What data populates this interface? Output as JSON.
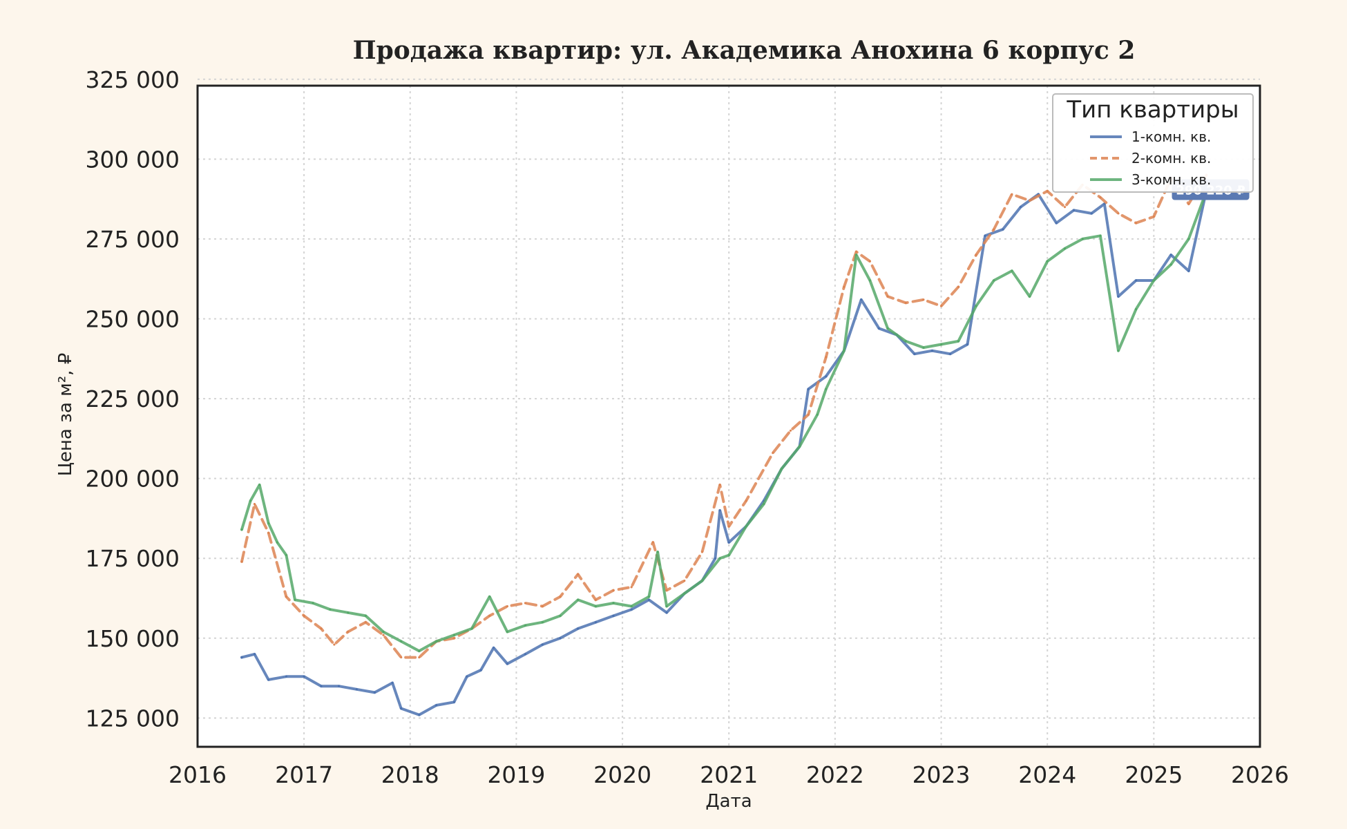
{
  "chart_data": {
    "type": "line",
    "title": "Продажа квартир: ул. Академика Анохина 6 корпус 2",
    "xlabel": "Дата",
    "ylabel": "Цена за м², ₽",
    "xlim": [
      "2016-01-01",
      "2026-01-01"
    ],
    "ylim": [
      116000,
      323000
    ],
    "x_ticks": [
      "2016",
      "2017",
      "2018",
      "2019",
      "2020",
      "2021",
      "2022",
      "2023",
      "2024",
      "2025",
      "2026"
    ],
    "y_ticks": [
      125000,
      150000,
      175000,
      200000,
      225000,
      250000,
      275000,
      300000,
      325000
    ],
    "y_tick_labels": [
      "125 000",
      "150 000",
      "175 000",
      "200 000",
      "225 000",
      "250 000",
      "275 000",
      "300 000",
      "325 000"
    ],
    "grid": true,
    "legend": {
      "title": "Тип квартиры",
      "placement": "top-right"
    },
    "annotation": {
      "text": "290 220 ₽",
      "series": "1-комн. кв.",
      "color": "#5a79b2"
    },
    "series": [
      {
        "name": "1-комн. кв.",
        "color": "#4c72b0",
        "style": "solid",
        "points": [
          [
            "2016-06-01",
            144000
          ],
          [
            "2016-07-15",
            145000
          ],
          [
            "2016-09-01",
            137000
          ],
          [
            "2016-11-01",
            138000
          ],
          [
            "2017-01-01",
            138000
          ],
          [
            "2017-03-01",
            135000
          ],
          [
            "2017-05-01",
            135000
          ],
          [
            "2017-07-01",
            134000
          ],
          [
            "2017-09-01",
            133000
          ],
          [
            "2017-11-01",
            136000
          ],
          [
            "2017-12-01",
            128000
          ],
          [
            "2018-02-01",
            126000
          ],
          [
            "2018-04-01",
            129000
          ],
          [
            "2018-06-01",
            130000
          ],
          [
            "2018-07-15",
            138000
          ],
          [
            "2018-09-01",
            140000
          ],
          [
            "2018-10-15",
            147000
          ],
          [
            "2018-12-01",
            142000
          ],
          [
            "2019-02-01",
            145000
          ],
          [
            "2019-04-01",
            148000
          ],
          [
            "2019-06-01",
            150000
          ],
          [
            "2019-08-01",
            153000
          ],
          [
            "2019-10-01",
            155000
          ],
          [
            "2019-12-01",
            157000
          ],
          [
            "2020-02-01",
            159000
          ],
          [
            "2020-04-01",
            162000
          ],
          [
            "2020-06-01",
            158000
          ],
          [
            "2020-08-01",
            164000
          ],
          [
            "2020-10-01",
            168000
          ],
          [
            "2020-11-15",
            175000
          ],
          [
            "2020-12-01",
            190000
          ],
          [
            "2021-01-01",
            180000
          ],
          [
            "2021-03-01",
            185000
          ],
          [
            "2021-05-01",
            193000
          ],
          [
            "2021-07-01",
            203000
          ],
          [
            "2021-09-01",
            210000
          ],
          [
            "2021-10-01",
            228000
          ],
          [
            "2021-12-01",
            232000
          ],
          [
            "2022-02-01",
            240000
          ],
          [
            "2022-04-01",
            256000
          ],
          [
            "2022-06-01",
            247000
          ],
          [
            "2022-08-01",
            245000
          ],
          [
            "2022-10-01",
            239000
          ],
          [
            "2022-12-01",
            240000
          ],
          [
            "2023-02-01",
            239000
          ],
          [
            "2023-04-01",
            242000
          ],
          [
            "2023-06-01",
            276000
          ],
          [
            "2023-08-01",
            278000
          ],
          [
            "2023-10-01",
            285000
          ],
          [
            "2023-12-01",
            289000
          ],
          [
            "2024-02-01",
            280000
          ],
          [
            "2024-04-01",
            284000
          ],
          [
            "2024-06-01",
            283000
          ],
          [
            "2024-07-15",
            286000
          ],
          [
            "2024-09-01",
            257000
          ],
          [
            "2024-11-01",
            262000
          ],
          [
            "2025-01-01",
            262000
          ],
          [
            "2025-03-01",
            270000
          ],
          [
            "2025-05-01",
            265000
          ],
          [
            "2025-07-01",
            290220
          ]
        ]
      },
      {
        "name": "2-комн. кв.",
        "color": "#dd8452",
        "style": "dashed",
        "points": [
          [
            "2016-06-01",
            174000
          ],
          [
            "2016-07-15",
            192000
          ],
          [
            "2016-09-01",
            183000
          ],
          [
            "2016-11-01",
            163000
          ],
          [
            "2017-01-01",
            157000
          ],
          [
            "2017-03-01",
            153000
          ],
          [
            "2017-04-15",
            148000
          ],
          [
            "2017-06-01",
            152000
          ],
          [
            "2017-08-01",
            155000
          ],
          [
            "2017-10-01",
            151000
          ],
          [
            "2017-12-01",
            144000
          ],
          [
            "2018-02-01",
            144000
          ],
          [
            "2018-04-01",
            149000
          ],
          [
            "2018-06-01",
            150000
          ],
          [
            "2018-08-01",
            153000
          ],
          [
            "2018-10-01",
            157000
          ],
          [
            "2018-12-01",
            160000
          ],
          [
            "2019-02-01",
            161000
          ],
          [
            "2019-04-01",
            160000
          ],
          [
            "2019-06-01",
            163000
          ],
          [
            "2019-08-01",
            170000
          ],
          [
            "2019-10-01",
            162000
          ],
          [
            "2019-12-01",
            165000
          ],
          [
            "2020-02-01",
            166000
          ],
          [
            "2020-04-15",
            180000
          ],
          [
            "2020-06-01",
            165000
          ],
          [
            "2020-08-01",
            168000
          ],
          [
            "2020-10-01",
            177000
          ],
          [
            "2020-12-01",
            198000
          ],
          [
            "2021-01-01",
            185000
          ],
          [
            "2021-03-01",
            193000
          ],
          [
            "2021-06-01",
            208000
          ],
          [
            "2021-08-01",
            215000
          ],
          [
            "2021-10-01",
            220000
          ],
          [
            "2021-12-01",
            238000
          ],
          [
            "2022-02-01",
            260000
          ],
          [
            "2022-03-15",
            271000
          ],
          [
            "2022-05-01",
            268000
          ],
          [
            "2022-07-01",
            257000
          ],
          [
            "2022-09-01",
            255000
          ],
          [
            "2022-11-01",
            256000
          ],
          [
            "2023-01-01",
            254000
          ],
          [
            "2023-03-01",
            260000
          ],
          [
            "2023-05-01",
            270000
          ],
          [
            "2023-07-01",
            278000
          ],
          [
            "2023-09-01",
            289000
          ],
          [
            "2023-11-01",
            287000
          ],
          [
            "2024-01-01",
            290000
          ],
          [
            "2024-03-01",
            285000
          ],
          [
            "2024-05-01",
            292000
          ],
          [
            "2024-07-01",
            288000
          ],
          [
            "2024-09-01",
            283000
          ],
          [
            "2024-11-01",
            280000
          ],
          [
            "2025-01-01",
            282000
          ],
          [
            "2025-03-01",
            294000
          ],
          [
            "2025-05-01",
            286000
          ],
          [
            "2025-07-01",
            295000
          ]
        ]
      },
      {
        "name": "3-комн. кв.",
        "color": "#55a868",
        "style": "solid",
        "points": [
          [
            "2016-06-01",
            184000
          ],
          [
            "2016-07-01",
            193000
          ],
          [
            "2016-08-01",
            198000
          ],
          [
            "2016-09-01",
            186000
          ],
          [
            "2016-10-01",
            180000
          ],
          [
            "2016-11-01",
            176000
          ],
          [
            "2016-12-01",
            162000
          ],
          [
            "2017-02-01",
            161000
          ],
          [
            "2017-04-01",
            159000
          ],
          [
            "2017-06-01",
            158000
          ],
          [
            "2017-08-01",
            157000
          ],
          [
            "2017-10-01",
            152000
          ],
          [
            "2017-12-01",
            149000
          ],
          [
            "2018-02-01",
            146000
          ],
          [
            "2018-04-01",
            149000
          ],
          [
            "2018-06-01",
            151000
          ],
          [
            "2018-08-01",
            153000
          ],
          [
            "2018-10-01",
            163000
          ],
          [
            "2018-12-01",
            152000
          ],
          [
            "2019-02-01",
            154000
          ],
          [
            "2019-04-01",
            155000
          ],
          [
            "2019-06-01",
            157000
          ],
          [
            "2019-08-01",
            162000
          ],
          [
            "2019-10-01",
            160000
          ],
          [
            "2019-12-01",
            161000
          ],
          [
            "2020-02-01",
            160000
          ],
          [
            "2020-04-01",
            163000
          ],
          [
            "2020-05-01",
            177000
          ],
          [
            "2020-06-01",
            160000
          ],
          [
            "2020-08-01",
            164000
          ],
          [
            "2020-10-01",
            168000
          ],
          [
            "2020-12-01",
            175000
          ],
          [
            "2021-01-01",
            176000
          ],
          [
            "2021-03-01",
            185000
          ],
          [
            "2021-05-01",
            192000
          ],
          [
            "2021-07-01",
            203000
          ],
          [
            "2021-09-01",
            210000
          ],
          [
            "2021-11-01",
            220000
          ],
          [
            "2021-12-01",
            228000
          ],
          [
            "2022-02-01",
            240000
          ],
          [
            "2022-03-15",
            270000
          ],
          [
            "2022-05-01",
            262000
          ],
          [
            "2022-07-01",
            247000
          ],
          [
            "2022-09-01",
            243000
          ],
          [
            "2022-11-01",
            241000
          ],
          [
            "2023-01-01",
            242000
          ],
          [
            "2023-03-01",
            243000
          ],
          [
            "2023-05-01",
            254000
          ],
          [
            "2023-07-01",
            262000
          ],
          [
            "2023-09-01",
            265000
          ],
          [
            "2023-11-01",
            257000
          ],
          [
            "2024-01-01",
            268000
          ],
          [
            "2024-03-01",
            272000
          ],
          [
            "2024-05-01",
            275000
          ],
          [
            "2024-07-01",
            276000
          ],
          [
            "2024-09-01",
            240000
          ],
          [
            "2024-11-01",
            253000
          ],
          [
            "2025-01-01",
            262000
          ],
          [
            "2025-03-01",
            267000
          ],
          [
            "2025-05-01",
            275000
          ],
          [
            "2025-07-01",
            290000
          ]
        ]
      }
    ]
  }
}
